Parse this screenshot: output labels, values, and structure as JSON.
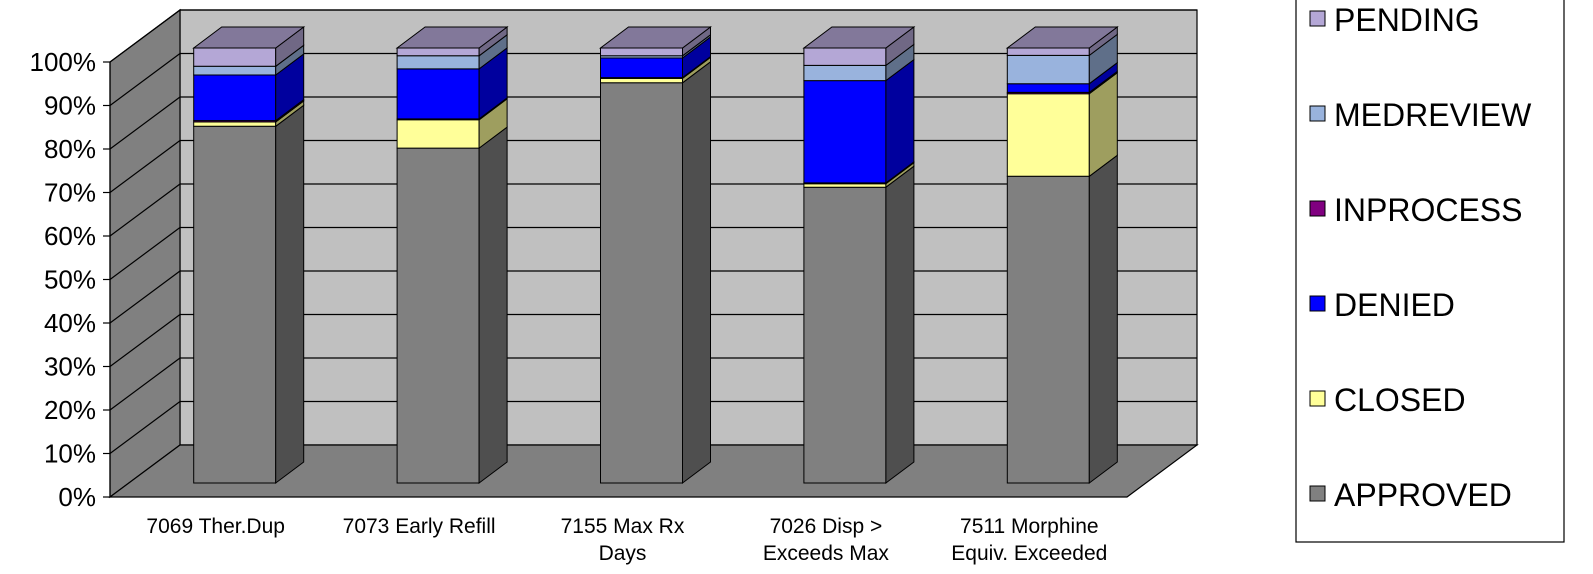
{
  "chart_data": {
    "type": "bar",
    "stacked": true,
    "percent": true,
    "three_d": true,
    "title": "",
    "xlabel": "",
    "ylabel": "",
    "ylim": [
      0,
      100
    ],
    "y_ticks": [
      "0%",
      "10%",
      "20%",
      "30%",
      "40%",
      "50%",
      "60%",
      "70%",
      "80%",
      "90%",
      "100%"
    ],
    "categories": [
      [
        "7069 Ther.Dup"
      ],
      [
        "7073 Early Refill"
      ],
      [
        "7155 Max Rx",
        "Days"
      ],
      [
        "7026 Disp >",
        "Exceeds Max"
      ],
      [
        "7511 Morphine",
        "Equiv. Exceeded"
      ]
    ],
    "series": [
      {
        "name": "APPROVED",
        "color": "#808080",
        "values": [
          82,
          77,
          92,
          68,
          70.5
        ]
      },
      {
        "name": "CLOSED",
        "color": "#FFFF99",
        "values": [
          1,
          6.5,
          1,
          0.8,
          19
        ]
      },
      {
        "name": "INPROCESS",
        "color": "#800080",
        "values": [
          0.3,
          0.2,
          0.2,
          0.2,
          0.3
        ]
      },
      {
        "name": "DENIED",
        "color": "#0000FF",
        "values": [
          10.5,
          11.5,
          4.5,
          23.5,
          2
        ]
      },
      {
        "name": "MEDREVIEW",
        "color": "#99B3DD",
        "values": [
          2,
          3,
          0.5,
          3.5,
          6.5
        ]
      },
      {
        "name": "PENDING",
        "color": "#B4A7D6",
        "values": [
          4.2,
          1.8,
          1.8,
          4,
          1.7
        ]
      }
    ],
    "grid": true,
    "legend": "right",
    "legend_order": [
      "PENDING",
      "MEDREVIEW",
      "INPROCESS",
      "DENIED",
      "CLOSED",
      "APPROVED"
    ]
  }
}
